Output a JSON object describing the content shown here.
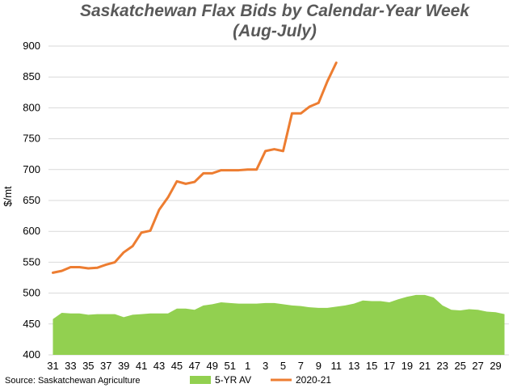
{
  "chart_data": {
    "type": "line",
    "title_line1": "Saskatchewan Flax Bids by Calendar-Year Week",
    "title_line2": "(Aug-July)",
    "ylabel": "$/mt",
    "xlabel": "",
    "ylim": [
      400,
      900
    ],
    "yticks": [
      400,
      450,
      500,
      550,
      600,
      650,
      700,
      750,
      800,
      850,
      900
    ],
    "grid": true,
    "legend_position": "bottom",
    "x": [
      31,
      32,
      33,
      34,
      35,
      36,
      37,
      38,
      39,
      40,
      41,
      42,
      43,
      44,
      45,
      46,
      47,
      48,
      49,
      50,
      51,
      52,
      1,
      2,
      3,
      4,
      5,
      6,
      7,
      8,
      9,
      10,
      11,
      12,
      13,
      14,
      15,
      16,
      17,
      18,
      19,
      20,
      21,
      22,
      23,
      24,
      25,
      26,
      27,
      28,
      29,
      30
    ],
    "xtick_labels": [
      "31",
      "33",
      "35",
      "37",
      "39",
      "41",
      "43",
      "45",
      "47",
      "49",
      "51",
      "1",
      "3",
      "5",
      "7",
      "9",
      "11",
      "13",
      "15",
      "17",
      "19",
      "21",
      "23",
      "25",
      "27",
      "29"
    ],
    "series": [
      {
        "name": "5-YR AV",
        "kind": "area",
        "color": "#92d050",
        "values": [
          458,
          468,
          467,
          467,
          465,
          466,
          466,
          466,
          461,
          465,
          466,
          467,
          467,
          467,
          475,
          475,
          473,
          480,
          482,
          485,
          484,
          483,
          483,
          483,
          484,
          484,
          482,
          480,
          479,
          477,
          476,
          476,
          478,
          480,
          483,
          488,
          487,
          487,
          485,
          490,
          494,
          497,
          497,
          493,
          480,
          473,
          472,
          474,
          473,
          470,
          469,
          466
        ]
      },
      {
        "name": "2020-21",
        "kind": "line",
        "color": "#ed7d31",
        "values": [
          533,
          536,
          542,
          542,
          540,
          541,
          546,
          550,
          566,
          576,
          598,
          601,
          635,
          655,
          681,
          677,
          680,
          694,
          694,
          699,
          699,
          699,
          700,
          700,
          730,
          733,
          730,
          791,
          791,
          802,
          808,
          843,
          873,
          null,
          null,
          null,
          null,
          null,
          null,
          null,
          null,
          null,
          null,
          null,
          null,
          null,
          null,
          null,
          null,
          null,
          null,
          null
        ]
      }
    ]
  },
  "source": "Source: Saskatchewan Agriculture",
  "legend": [
    {
      "label": "5-YR AV",
      "color": "#92d050",
      "kind": "area"
    },
    {
      "label": "2020-21",
      "color": "#ed7d31",
      "kind": "line"
    }
  ]
}
